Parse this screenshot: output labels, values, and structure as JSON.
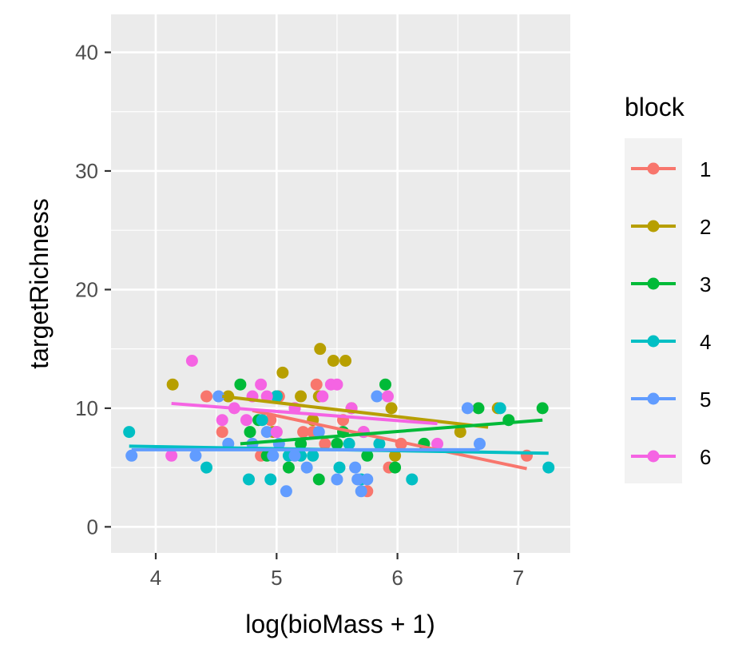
{
  "chart_data": {
    "type": "scatter",
    "xlabel": "log(bioMass + 1)",
    "ylabel": "targetRichness",
    "xlim": [
      3.63,
      7.43
    ],
    "ylim": [
      -2.2,
      43.2
    ],
    "x_ticks": [
      4,
      5,
      6,
      7
    ],
    "y_ticks": [
      0,
      10,
      20,
      30,
      40
    ],
    "grid": true,
    "legend": {
      "title": "block",
      "position": "right"
    },
    "series": [
      {
        "name": "1",
        "color": "#F8766D",
        "points": [
          [
            4.42,
            11
          ],
          [
            4.55,
            8
          ],
          [
            4.87,
            6
          ],
          [
            4.95,
            9
          ],
          [
            5.0,
            8
          ],
          [
            5.02,
            11
          ],
          [
            5.15,
            10
          ],
          [
            5.22,
            8
          ],
          [
            5.3,
            8
          ],
          [
            5.33,
            12
          ],
          [
            5.4,
            7
          ],
          [
            5.55,
            9
          ],
          [
            5.72,
            8
          ],
          [
            5.75,
            3
          ],
          [
            5.93,
            5
          ],
          [
            6.03,
            7
          ],
          [
            7.07,
            6
          ]
        ],
        "fit": [
          [
            4.8,
            9.8
          ],
          [
            7.07,
            4.9
          ]
        ]
      },
      {
        "name": "2",
        "color": "#B79F00",
        "points": [
          [
            4.14,
            12
          ],
          [
            4.6,
            11
          ],
          [
            4.97,
            8
          ],
          [
            5.05,
            13
          ],
          [
            5.2,
            11
          ],
          [
            5.3,
            9
          ],
          [
            5.35,
            11
          ],
          [
            5.36,
            15
          ],
          [
            5.47,
            14
          ],
          [
            5.57,
            14
          ],
          [
            5.62,
            10
          ],
          [
            5.95,
            10
          ],
          [
            5.98,
            6
          ],
          [
            6.52,
            8
          ],
          [
            6.83,
            10
          ]
        ],
        "fit": [
          [
            4.55,
            11.0
          ],
          [
            6.75,
            8.4
          ]
        ]
      },
      {
        "name": "3",
        "color": "#00BA38",
        "points": [
          [
            4.7,
            12
          ],
          [
            4.78,
            8
          ],
          [
            4.85,
            9
          ],
          [
            4.92,
            6
          ],
          [
            5.0,
            11
          ],
          [
            5.1,
            5
          ],
          [
            5.2,
            7
          ],
          [
            5.35,
            4
          ],
          [
            5.5,
            7
          ],
          [
            5.55,
            8
          ],
          [
            5.75,
            6
          ],
          [
            5.9,
            12
          ],
          [
            5.98,
            5
          ],
          [
            6.22,
            7
          ],
          [
            6.67,
            10
          ],
          [
            6.92,
            9
          ],
          [
            7.2,
            10
          ]
        ],
        "fit": [
          [
            4.7,
            7.0
          ],
          [
            7.2,
            9.0
          ]
        ]
      },
      {
        "name": "4",
        "color": "#00BFC4",
        "points": [
          [
            3.78,
            8
          ],
          [
            4.42,
            5
          ],
          [
            4.77,
            4
          ],
          [
            4.88,
            9
          ],
          [
            4.95,
            4
          ],
          [
            5.0,
            11
          ],
          [
            5.1,
            6
          ],
          [
            5.2,
            6
          ],
          [
            5.3,
            6
          ],
          [
            5.52,
            5
          ],
          [
            5.6,
            7
          ],
          [
            5.7,
            4
          ],
          [
            5.85,
            7
          ],
          [
            6.12,
            4
          ],
          [
            6.85,
            10
          ],
          [
            7.25,
            5
          ]
        ],
        "fit": [
          [
            3.78,
            6.8
          ],
          [
            7.25,
            6.2
          ]
        ]
      },
      {
        "name": "5",
        "color": "#619CFF",
        "points": [
          [
            3.8,
            6
          ],
          [
            4.33,
            6
          ],
          [
            4.52,
            11
          ],
          [
            4.6,
            7
          ],
          [
            4.8,
            7
          ],
          [
            4.92,
            8
          ],
          [
            4.97,
            6
          ],
          [
            5.02,
            7
          ],
          [
            5.08,
            3
          ],
          [
            5.15,
            6
          ],
          [
            5.25,
            5
          ],
          [
            5.35,
            8
          ],
          [
            5.5,
            4
          ],
          [
            5.65,
            5
          ],
          [
            5.67,
            4
          ],
          [
            5.7,
            3
          ],
          [
            5.75,
            4
          ],
          [
            5.83,
            11
          ],
          [
            6.58,
            10
          ],
          [
            6.68,
            7
          ]
        ],
        "fit": [
          [
            3.8,
            6.5
          ],
          [
            6.68,
            6.5
          ]
        ]
      },
      {
        "name": "6",
        "color": "#F564E3",
        "points": [
          [
            4.13,
            6
          ],
          [
            4.3,
            14
          ],
          [
            4.55,
            9
          ],
          [
            4.65,
            10
          ],
          [
            4.75,
            9
          ],
          [
            4.8,
            11
          ],
          [
            4.87,
            12
          ],
          [
            4.92,
            11
          ],
          [
            5.0,
            8
          ],
          [
            5.15,
            10
          ],
          [
            5.38,
            11
          ],
          [
            5.45,
            12
          ],
          [
            5.5,
            12
          ],
          [
            5.62,
            10
          ],
          [
            5.72,
            8
          ],
          [
            5.92,
            11
          ],
          [
            6.33,
            7
          ]
        ],
        "fit": [
          [
            4.13,
            10.4
          ],
          [
            6.33,
            8.7
          ]
        ]
      }
    ]
  }
}
